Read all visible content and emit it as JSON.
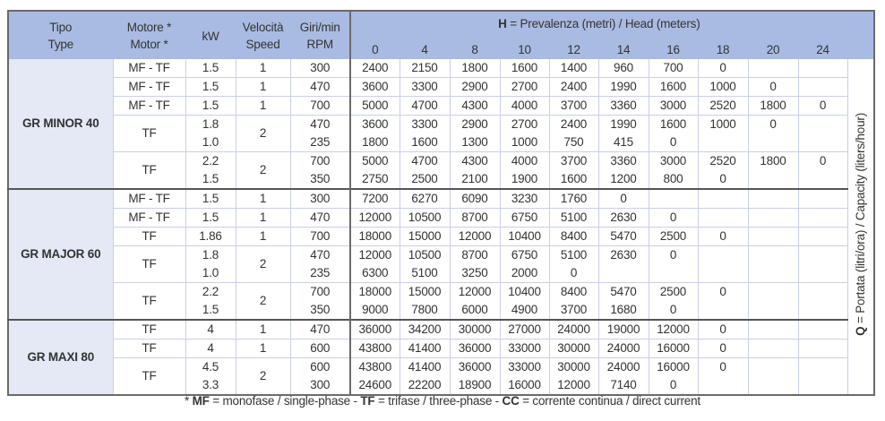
{
  "header": {
    "tipo": [
      "Tipo",
      "Type"
    ],
    "motore": [
      "Motore *",
      "Motor *"
    ],
    "kw": "kW",
    "velocita": [
      "Velocità",
      "Speed"
    ],
    "giri": [
      "Giri/min",
      "RPM"
    ],
    "head_title_bold": "H",
    "head_title_rest": " = Prevalenza (metri) / Head (meters)",
    "heads": [
      "0",
      "4",
      "8",
      "10",
      "12",
      "14",
      "16",
      "18",
      "20",
      "24"
    ]
  },
  "q_label_bold": "Q",
  "q_label_rest": " = Portata (litri/ora) / Capacity (liters/hour)",
  "groups": [
    {
      "name": "GR MINOR 40",
      "rows": [
        {
          "motor": "MF - TF",
          "kw": [
            "1.5"
          ],
          "speed": "1",
          "rpm": [
            "300"
          ],
          "q": [
            [
              "2400",
              "2150",
              "1800",
              "1600",
              "1400",
              "960",
              "700",
              "0",
              "",
              ""
            ]
          ]
        },
        {
          "motor": "MF - TF",
          "kw": [
            "1.5"
          ],
          "speed": "1",
          "rpm": [
            "470"
          ],
          "q": [
            [
              "3600",
              "3300",
              "2900",
              "2700",
              "2400",
              "1990",
              "1600",
              "1000",
              "0",
              ""
            ]
          ]
        },
        {
          "motor": "MF - TF",
          "kw": [
            "1.5"
          ],
          "speed": "1",
          "rpm": [
            "700"
          ],
          "q": [
            [
              "5000",
              "4700",
              "4300",
              "4000",
              "3700",
              "3360",
              "3000",
              "2520",
              "1800",
              "0"
            ]
          ]
        },
        {
          "motor": "TF",
          "kw": [
            "1.8",
            "1.0"
          ],
          "speed": "2",
          "rpm": [
            "470",
            "235"
          ],
          "q": [
            [
              "3600",
              "3300",
              "2900",
              "2700",
              "2400",
              "1990",
              "1600",
              "1000",
              "0",
              ""
            ],
            [
              "1800",
              "1600",
              "1300",
              "1000",
              "750",
              "415",
              "0",
              "",
              "",
              ""
            ]
          ]
        },
        {
          "motor": "TF",
          "kw": [
            "2.2",
            "1.5"
          ],
          "speed": "2",
          "rpm": [
            "700",
            "350"
          ],
          "q": [
            [
              "5000",
              "4700",
              "4300",
              "4000",
              "3700",
              "3360",
              "3000",
              "2520",
              "1800",
              "0"
            ],
            [
              "2750",
              "2500",
              "2100",
              "1900",
              "1600",
              "1200",
              "800",
              "0",
              "",
              ""
            ]
          ]
        }
      ]
    },
    {
      "name": "GR MAJOR 60",
      "rows": [
        {
          "motor": "MF - TF",
          "kw": [
            "1.5"
          ],
          "speed": "1",
          "rpm": [
            "300"
          ],
          "q": [
            [
              "7200",
              "6270",
              "6090",
              "3230",
              "1760",
              "0",
              "",
              "",
              "",
              ""
            ]
          ]
        },
        {
          "motor": "MF - TF",
          "kw": [
            "1.5"
          ],
          "speed": "1",
          "rpm": [
            "470"
          ],
          "q": [
            [
              "12000",
              "10500",
              "8700",
              "6750",
              "5100",
              "2630",
              "0",
              "",
              "",
              ""
            ]
          ]
        },
        {
          "motor": "TF",
          "kw": [
            "1.86"
          ],
          "speed": "1",
          "rpm": [
            "700"
          ],
          "q": [
            [
              "18000",
              "15000",
              "12000",
              "10400",
              "8400",
              "5470",
              "2500",
              "0",
              "",
              ""
            ]
          ]
        },
        {
          "motor": "TF",
          "kw": [
            "1.8",
            "1.0"
          ],
          "speed": "2",
          "rpm": [
            "470",
            "235"
          ],
          "q": [
            [
              "12000",
              "10500",
              "8700",
              "6750",
              "5100",
              "2630",
              "0",
              "",
              "",
              ""
            ],
            [
              "6300",
              "5100",
              "3250",
              "2000",
              "0",
              "",
              "",
              "",
              "",
              ""
            ]
          ]
        },
        {
          "motor": "TF",
          "kw": [
            "2.2",
            "1.5"
          ],
          "speed": "2",
          "rpm": [
            "700",
            "350"
          ],
          "q": [
            [
              "18000",
              "15000",
              "12000",
              "10400",
              "8400",
              "5470",
              "2500",
              "0",
              "",
              ""
            ],
            [
              "9000",
              "7800",
              "6000",
              "4900",
              "3700",
              "1680",
              "0",
              "",
              "",
              ""
            ]
          ]
        }
      ]
    },
    {
      "name": "GR MAXI 80",
      "rows": [
        {
          "motor": "TF",
          "kw": [
            "4"
          ],
          "speed": "1",
          "rpm": [
            "470"
          ],
          "q": [
            [
              "36000",
              "34200",
              "30000",
              "27000",
              "24000",
              "19000",
              "12000",
              "0",
              "",
              ""
            ]
          ]
        },
        {
          "motor": "TF",
          "kw": [
            "4"
          ],
          "speed": "1",
          "rpm": [
            "600"
          ],
          "q": [
            [
              "43800",
              "41400",
              "36000",
              "33000",
              "30000",
              "24000",
              "16000",
              "0",
              "",
              ""
            ]
          ]
        },
        {
          "motor": "TF",
          "kw": [
            "4.5",
            "3.3"
          ],
          "speed": "2",
          "rpm": [
            "600",
            "300"
          ],
          "q": [
            [
              "43800",
              "41400",
              "36000",
              "33000",
              "30000",
              "24000",
              "16000",
              "0",
              "",
              ""
            ],
            [
              "24600",
              "22200",
              "18900",
              "16000",
              "12000",
              "7140",
              "0",
              "",
              "",
              ""
            ]
          ]
        }
      ]
    }
  ],
  "footer": [
    {
      "text": "* ",
      "bold": false
    },
    {
      "text": "MF",
      "bold": true
    },
    {
      "text": " = monofase / single-phase - ",
      "bold": false
    },
    {
      "text": "TF",
      "bold": true
    },
    {
      "text": " = trifase / three-phase - ",
      "bold": false
    },
    {
      "text": "CC",
      "bold": true
    },
    {
      "text": " = corrente continua / direct current",
      "bold": false
    }
  ],
  "colors": {
    "header_bg": "#a9bbe2",
    "type_col_bg": "#e4e9f5",
    "grid": "#c9d0e6",
    "text": "#333333"
  }
}
